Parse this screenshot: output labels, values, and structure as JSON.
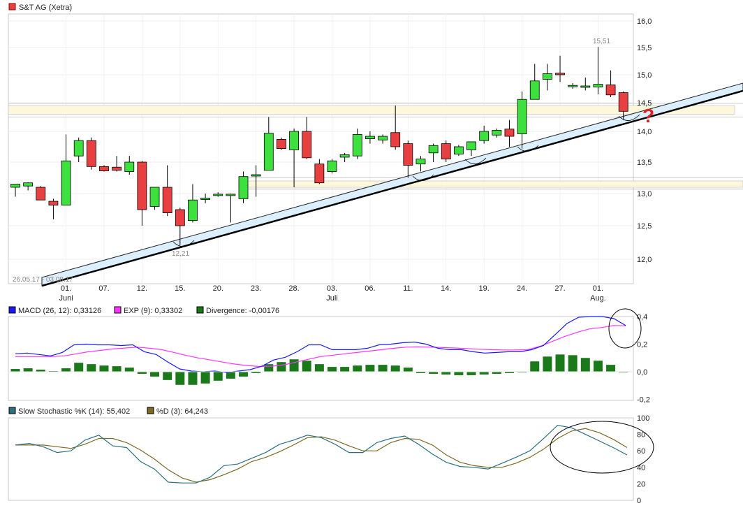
{
  "colors": {
    "up": "#3ee03e",
    "down": "#e84040",
    "macd": "#1a1aff",
    "exp": "#ff33ff",
    "divergence": "#1a7a1a",
    "k": "#2a7080",
    "d": "#7a6a20",
    "zone": "#fdf8dc",
    "channel": "#dcefff"
  },
  "chart_data": [
    {
      "type": "candlestick",
      "title": "S&T AG (Xetra)",
      "ylim": [
        11.6,
        16.1
      ],
      "y_ticks": [
        "16,0",
        "15,5",
        "15,0",
        "14,5",
        "14,0",
        "13,5",
        "13,0",
        "12,5",
        "12,0"
      ],
      "y_tick_values": [
        16.0,
        15.5,
        15.0,
        14.5,
        14.0,
        13.5,
        13.0,
        12.5,
        12.0
      ],
      "x_ticks": [
        {
          "i": 4,
          "label": "01.",
          "sub": "Juni"
        },
        {
          "i": 7,
          "label": "07.",
          "sub": ""
        },
        {
          "i": 10,
          "label": "12.",
          "sub": ""
        },
        {
          "i": 13,
          "label": "15.",
          "sub": ""
        },
        {
          "i": 16,
          "label": "20.",
          "sub": ""
        },
        {
          "i": 19,
          "label": "23.",
          "sub": ""
        },
        {
          "i": 22,
          "label": "28.",
          "sub": ""
        },
        {
          "i": 25,
          "label": "03.",
          "sub": "Juli"
        },
        {
          "i": 28,
          "label": "06.",
          "sub": ""
        },
        {
          "i": 31,
          "label": "11.",
          "sub": ""
        },
        {
          "i": 34,
          "label": "14.",
          "sub": ""
        },
        {
          "i": 37,
          "label": "19.",
          "sub": ""
        },
        {
          "i": 40,
          "label": "24.",
          "sub": ""
        },
        {
          "i": 43,
          "label": "27.",
          "sub": ""
        },
        {
          "i": 46,
          "label": "01.",
          "sub": "Aug."
        }
      ],
      "date_range": "26.05.17 - 03.08.17",
      "annotations": [
        {
          "i": 46,
          "value": 15.51,
          "label": "15,51"
        },
        {
          "i": 13,
          "value": 12.21,
          "label": "12,21"
        }
      ],
      "marker": "?",
      "candles": [
        {
          "o": 13.1,
          "h": 13.15,
          "l": 12.95,
          "c": 13.15
        },
        {
          "o": 13.12,
          "h": 13.18,
          "l": 13.05,
          "c": 13.17
        },
        {
          "o": 13.1,
          "h": 13.12,
          "l": 12.9,
          "c": 12.9
        },
        {
          "o": 12.88,
          "h": 12.92,
          "l": 12.6,
          "c": 12.82
        },
        {
          "o": 12.82,
          "h": 13.95,
          "l": 12.82,
          "c": 13.52
        },
        {
          "o": 13.6,
          "h": 13.9,
          "l": 13.5,
          "c": 13.85
        },
        {
          "o": 13.85,
          "h": 13.9,
          "l": 13.38,
          "c": 13.43
        },
        {
          "o": 13.43,
          "h": 13.45,
          "l": 13.35,
          "c": 13.36
        },
        {
          "o": 13.42,
          "h": 13.6,
          "l": 13.35,
          "c": 13.37
        },
        {
          "o": 13.35,
          "h": 13.6,
          "l": 13.3,
          "c": 13.5
        },
        {
          "o": 13.5,
          "h": 13.52,
          "l": 12.5,
          "c": 12.75
        },
        {
          "o": 12.8,
          "h": 13.1,
          "l": 12.75,
          "c": 13.1
        },
        {
          "o": 13.1,
          "h": 13.45,
          "l": 12.65,
          "c": 12.7
        },
        {
          "o": 12.75,
          "h": 12.78,
          "l": 12.21,
          "c": 12.5
        },
        {
          "o": 12.58,
          "h": 13.15,
          "l": 12.55,
          "c": 12.9
        },
        {
          "o": 12.92,
          "h": 13.0,
          "l": 12.85,
          "c": 12.93
        },
        {
          "o": 12.98,
          "h": 13.02,
          "l": 12.95,
          "c": 12.99
        },
        {
          "o": 12.97,
          "h": 13.0,
          "l": 12.55,
          "c": 12.99
        },
        {
          "o": 12.92,
          "h": 13.35,
          "l": 12.85,
          "c": 13.27
        },
        {
          "o": 13.29,
          "h": 13.45,
          "l": 12.95,
          "c": 13.3
        },
        {
          "o": 13.37,
          "h": 14.25,
          "l": 13.37,
          "c": 13.97
        },
        {
          "o": 13.87,
          "h": 13.9,
          "l": 13.7,
          "c": 13.72
        },
        {
          "o": 13.7,
          "h": 14.05,
          "l": 13.1,
          "c": 14.0
        },
        {
          "o": 14.0,
          "h": 14.25,
          "l": 13.55,
          "c": 13.57
        },
        {
          "o": 13.47,
          "h": 13.55,
          "l": 13.15,
          "c": 13.17
        },
        {
          "o": 13.35,
          "h": 13.55,
          "l": 13.32,
          "c": 13.52
        },
        {
          "o": 13.58,
          "h": 13.65,
          "l": 13.5,
          "c": 13.62
        },
        {
          "o": 13.6,
          "h": 14.05,
          "l": 13.55,
          "c": 13.95
        },
        {
          "o": 13.88,
          "h": 14.0,
          "l": 13.8,
          "c": 13.92
        },
        {
          "o": 13.86,
          "h": 13.95,
          "l": 13.8,
          "c": 13.92
        },
        {
          "o": 13.98,
          "h": 14.45,
          "l": 13.7,
          "c": 13.75
        },
        {
          "o": 13.8,
          "h": 13.85,
          "l": 13.25,
          "c": 13.45
        },
        {
          "o": 13.47,
          "h": 13.6,
          "l": 13.35,
          "c": 13.55
        },
        {
          "o": 13.65,
          "h": 13.8,
          "l": 13.5,
          "c": 13.77
        },
        {
          "o": 13.8,
          "h": 13.85,
          "l": 13.5,
          "c": 13.55
        },
        {
          "o": 13.63,
          "h": 13.78,
          "l": 13.6,
          "c": 13.75
        },
        {
          "o": 13.7,
          "h": 13.82,
          "l": 13.6,
          "c": 13.83
        },
        {
          "o": 13.85,
          "h": 14.1,
          "l": 13.8,
          "c": 14.0
        },
        {
          "o": 13.94,
          "h": 14.05,
          "l": 13.9,
          "c": 14.02
        },
        {
          "o": 14.04,
          "h": 14.2,
          "l": 13.75,
          "c": 13.92
        },
        {
          "o": 13.96,
          "h": 14.7,
          "l": 13.72,
          "c": 14.56
        },
        {
          "o": 14.56,
          "h": 15.2,
          "l": 14.56,
          "c": 14.89
        },
        {
          "o": 14.92,
          "h": 15.2,
          "l": 14.72,
          "c": 15.02
        },
        {
          "o": 15.03,
          "h": 15.35,
          "l": 14.87,
          "c": 15.0
        },
        {
          "o": 14.8,
          "h": 14.85,
          "l": 14.75,
          "c": 14.81
        },
        {
          "o": 14.8,
          "h": 14.95,
          "l": 14.72,
          "c": 14.8
        },
        {
          "o": 14.78,
          "h": 15.51,
          "l": 14.65,
          "c": 14.83
        },
        {
          "o": 14.82,
          "h": 15.08,
          "l": 14.6,
          "c": 14.64
        },
        {
          "o": 14.68,
          "h": 14.7,
          "l": 14.2,
          "c": 14.35
        }
      ]
    },
    {
      "type": "line",
      "legend": [
        {
          "key": "macd",
          "label": "MACD (26, 12): 0,33126"
        },
        {
          "key": "exp",
          "label": "EXP (9): 0,33302"
        },
        {
          "key": "divergence",
          "label": "Divergence: -0,00176"
        }
      ],
      "ylim": [
        -0.2,
        0.4
      ],
      "y_ticks": [
        "0,4",
        "0,2",
        "0,0",
        "-0,2"
      ],
      "y_tick_values": [
        0.4,
        0.2,
        0.0,
        -0.2
      ],
      "macd": [
        0.13,
        0.135,
        0.125,
        0.115,
        0.14,
        0.195,
        0.2,
        0.195,
        0.195,
        0.19,
        0.195,
        0.145,
        0.125,
        0.07,
        0.02,
        0.005,
        0.0,
        0.005,
        -0.005,
        0.005,
        0.015,
        0.04,
        0.085,
        0.105,
        0.145,
        0.195,
        0.195,
        0.16,
        0.16,
        0.16,
        0.17,
        0.195,
        0.2,
        0.21,
        0.215,
        0.2,
        0.17,
        0.16,
        0.16,
        0.145,
        0.135,
        0.14,
        0.145,
        0.145,
        0.16,
        0.19,
        0.27,
        0.35,
        0.395,
        0.4,
        0.4,
        0.385,
        0.335
      ],
      "exp": [
        0.11,
        0.11,
        0.11,
        0.11,
        0.115,
        0.13,
        0.145,
        0.155,
        0.165,
        0.172,
        0.178,
        0.17,
        0.16,
        0.14,
        0.118,
        0.1,
        0.085,
        0.07,
        0.055,
        0.045,
        0.038,
        0.04,
        0.05,
        0.07,
        0.09,
        0.11,
        0.12,
        0.13,
        0.14,
        0.15,
        0.16,
        0.17,
        0.178,
        0.18,
        0.178,
        0.175,
        0.172,
        0.168,
        0.163,
        0.16,
        0.158,
        0.158,
        0.16,
        0.185,
        0.22,
        0.255,
        0.285,
        0.31,
        0.32,
        0.335,
        0.333
      ],
      "divergence": [
        0.02,
        0.025,
        0.015,
        0.005,
        0.025,
        0.065,
        0.055,
        0.045,
        0.04,
        0.03,
        -0.015,
        -0.035,
        -0.06,
        -0.095,
        -0.095,
        -0.085,
        -0.065,
        -0.05,
        -0.035,
        -0.01,
        0.055,
        0.07,
        0.09,
        0.08,
        0.055,
        0.035,
        0.035,
        0.045,
        0.05,
        0.05,
        0.045,
        0.03,
        -0.01,
        -0.015,
        -0.02,
        -0.025,
        -0.025,
        -0.02,
        -0.015,
        -0.01,
        -0.005,
        0.075,
        0.11,
        0.125,
        0.12,
        0.1,
        0.08,
        0.05,
        0.0
      ]
    },
    {
      "type": "line",
      "legend": [
        {
          "key": "k",
          "label": "Slow Stochastic %K (14): 55,402"
        },
        {
          "key": "d",
          "label": "%D (3): 64,243"
        }
      ],
      "ylim": [
        0,
        100
      ],
      "y_ticks": [
        "100",
        "80",
        "60",
        "40",
        "20",
        "0"
      ],
      "y_tick_values": [
        100,
        80,
        60,
        40,
        20,
        0
      ],
      "k": [
        67,
        69,
        65,
        58,
        60,
        73,
        79,
        66,
        64,
        47,
        38,
        22,
        21,
        21,
        28,
        42,
        44,
        51,
        58,
        68,
        73,
        79,
        76,
        68,
        58,
        58,
        70,
        75,
        78,
        68,
        56,
        46,
        41,
        40,
        38,
        45,
        52,
        60,
        75,
        91,
        88,
        80,
        72,
        64,
        55
      ],
      "d": [
        67,
        67,
        67,
        65,
        63,
        68,
        75,
        75,
        70,
        61,
        50,
        37,
        27,
        22,
        25,
        31,
        38,
        47,
        52,
        59,
        67,
        76,
        77,
        73,
        66,
        60,
        60,
        70,
        75,
        74,
        67,
        55,
        46,
        42,
        40,
        40,
        45,
        52,
        62,
        75,
        84,
        87,
        82,
        74,
        64
      ]
    }
  ]
}
